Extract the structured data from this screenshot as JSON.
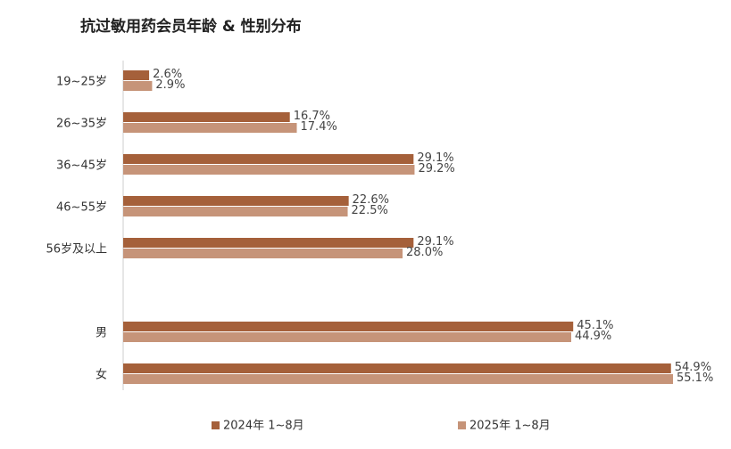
{
  "chart_data": {
    "type": "bar",
    "orientation": "horizontal",
    "title": "抗过敏用药会员年龄 & 性别分布",
    "categories": [
      "19~25岁",
      "26~35岁",
      "36~45岁",
      "46~55岁",
      "56岁及以上",
      null,
      "男",
      "女"
    ],
    "series": [
      {
        "name": "2024年 1~8月",
        "color": "#a5603a",
        "values": [
          2.6,
          16.7,
          29.1,
          22.6,
          29.1,
          null,
          45.1,
          54.9
        ],
        "value_labels": [
          "2.6%",
          "16.7%",
          "29.1%",
          "22.6%",
          "29.1%",
          null,
          "45.1%",
          "54.9%"
        ]
      },
      {
        "name": "2025年 1~8月",
        "color": "#c69479",
        "values": [
          2.9,
          17.4,
          29.2,
          22.5,
          28.0,
          null,
          44.9,
          55.1
        ],
        "value_labels": [
          "2.9%",
          "17.4%",
          "29.2%",
          "22.5%",
          "28.0%",
          null,
          "44.9%",
          "55.1%"
        ]
      }
    ]
  }
}
